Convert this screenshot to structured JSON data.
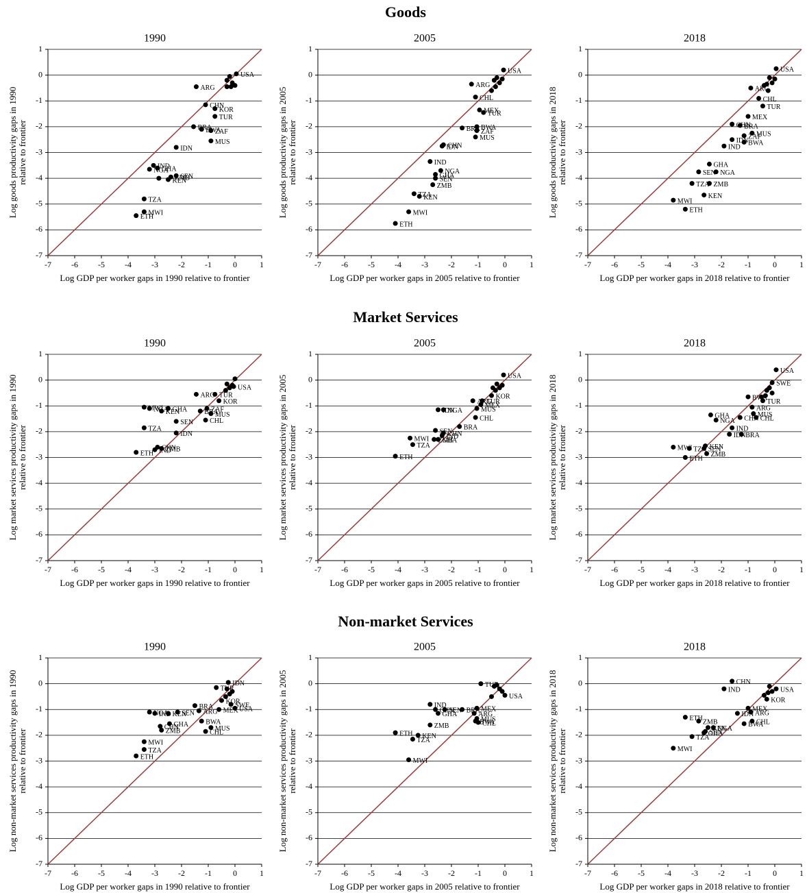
{
  "sections": [
    "Goods",
    "Market Services",
    "Non-market Services"
  ],
  "chart_data": [
    {
      "type": "scatter",
      "title": "1990",
      "xlabel": "Log GDP per worker gaps in 1990 relative to frontier",
      "ylabel": [
        "Log goods productivity gaps in 1990",
        "relative to frontier"
      ],
      "x": [
        0.05,
        -1.45,
        -1.1,
        -0.75,
        -0.75,
        -1.55,
        -1.25,
        -0.9,
        -0.9,
        -2.2,
        -3.05,
        -3.2,
        -2.9,
        -2.2,
        -2.4,
        -2.5,
        -2.85,
        -3.4,
        -3.4,
        -3.7,
        -0.3,
        -0.2,
        -0.1,
        -0.3,
        0.0,
        -0.15
      ],
      "y": [
        0.05,
        -0.45,
        -1.15,
        -1.3,
        -1.6,
        -2.0,
        -2.1,
        -2.15,
        -2.55,
        -2.8,
        -3.5,
        -3.65,
        -3.6,
        -3.9,
        -3.95,
        -4.05,
        -4.0,
        -4.8,
        -5.3,
        -5.45,
        -0.2,
        -0.05,
        -0.3,
        -0.45,
        -0.4,
        -0.45
      ],
      "labels": [
        "USA",
        "ARG",
        "CHN",
        "KOR",
        "TUR",
        "BRA",
        "BWA",
        "ZAF",
        "MUS",
        "IDN",
        "IND",
        "NGA",
        "GHA",
        "SEN",
        "ZMB",
        "KEN",
        null,
        "TZA",
        "MWI",
        "ETH",
        null,
        null,
        null,
        null,
        null,
        null
      ],
      "xlim": [
        -7,
        1
      ],
      "ylim": [
        -7,
        1
      ],
      "xticks": [
        -7,
        -6,
        -5,
        -4,
        -3,
        -2,
        -1,
        0,
        1
      ],
      "yticks": [
        -7,
        -6,
        -5,
        -4,
        -3,
        -2,
        -1,
        0,
        1
      ],
      "grid": true,
      "color": "#000000",
      "diagonal_color": "#9b3b3b"
    },
    {
      "type": "scatter",
      "title": "2005",
      "xlabel": "Log GDP per worker gaps in 2005 relative to frontier",
      "ylabel": [
        "Log goods productivity gaps in 2005",
        "relative to frontier"
      ],
      "x": [
        -0.05,
        -1.25,
        -1.1,
        -0.95,
        -0.8,
        -1.6,
        -1.05,
        -1.05,
        -1.1,
        -2.3,
        -2.35,
        -2.8,
        -2.4,
        -2.6,
        -2.6,
        -2.7,
        -3.4,
        -3.2,
        -3.6,
        -4.1,
        -0.4,
        -0.3,
        -0.2,
        -0.1,
        -0.5,
        -0.35
      ],
      "y": [
        0.2,
        -0.35,
        -0.85,
        -1.35,
        -1.45,
        -2.05,
        -2.0,
        -2.15,
        -2.4,
        -2.7,
        -2.75,
        -3.35,
        -3.7,
        -3.85,
        -4.0,
        -4.25,
        -4.6,
        -4.7,
        -5.3,
        -5.75,
        -0.2,
        -0.1,
        -0.3,
        -0.15,
        -0.6,
        -0.45
      ],
      "labels": [
        "USA",
        "ARG",
        "CHL",
        "MEX",
        "TUR",
        "BRA",
        "BWA",
        "ZAF",
        "MUS",
        "CHN",
        "IDN",
        "IND",
        "NGA",
        "GHA",
        "SEN",
        "ZMB",
        "TZA",
        "KEN",
        "MWI",
        "ETH",
        null,
        null,
        null,
        null,
        null,
        null
      ],
      "xlim": [
        -7,
        1
      ],
      "ylim": [
        -7,
        1
      ],
      "xticks": [
        -7,
        -6,
        -5,
        -4,
        -3,
        -2,
        -1,
        0,
        1
      ],
      "yticks": [
        -7,
        -6,
        -5,
        -4,
        -3,
        -2,
        -1,
        0,
        1
      ],
      "grid": true,
      "color": "#000000",
      "diagonal_color": "#9b3b3b"
    },
    {
      "type": "scatter",
      "title": "2018",
      "xlabel": "Log GDP per worker gaps in 2018 relative to frontier",
      "ylabel": [
        "Log goods productivity gaps in 2018",
        "relative to frontier"
      ],
      "x": [
        0.05,
        -0.9,
        -0.6,
        -0.45,
        -1.0,
        -1.6,
        -1.3,
        -0.85,
        -1.6,
        -1.15,
        -1.15,
        -1.9,
        -2.45,
        -2.85,
        -2.2,
        -3.1,
        -2.45,
        -2.65,
        -3.8,
        -3.35,
        -0.3,
        -0.2,
        -0.1,
        -0.25,
        -0.4,
        0.0
      ],
      "y": [
        0.25,
        -0.5,
        -0.9,
        -1.2,
        -1.6,
        -1.9,
        -1.95,
        -2.25,
        -2.5,
        -2.35,
        -2.6,
        -2.75,
        -3.45,
        -3.75,
        -3.75,
        -4.2,
        -4.2,
        -4.65,
        -4.85,
        -5.2,
        -0.35,
        -0.1,
        -0.3,
        -0.6,
        -0.4,
        -0.15
      ],
      "labels": [
        "USA",
        "ARG",
        "CHL",
        "TUR",
        "MEX",
        "CHN",
        "BRA",
        "MUS",
        "IDN",
        "ZAF",
        "BWA",
        "IND",
        "GHA",
        "SEN",
        "NGA",
        "TZA",
        "ZMB",
        "KEN",
        "MWI",
        "ETH",
        null,
        null,
        null,
        null,
        null,
        null
      ],
      "xlim": [
        -7,
        1
      ],
      "ylim": [
        -7,
        1
      ],
      "xticks": [
        -7,
        -6,
        -5,
        -4,
        -3,
        -2,
        -1,
        0,
        1
      ],
      "yticks": [
        -7,
        -6,
        -5,
        -4,
        -3,
        -2,
        -1,
        0,
        1
      ],
      "grid": true,
      "color": "#000000",
      "diagonal_color": "#9b3b3b"
    },
    {
      "type": "scatter",
      "title": "1990",
      "xlabel": "Log GDP per worker gaps in 1990 relative to frontier",
      "ylabel": [
        "Log market services productivity gaps in 1990",
        "relative to frontier"
      ],
      "x": [
        0.0,
        -1.45,
        -0.6,
        -0.75,
        -1.3,
        -1.05,
        -0.9,
        -1.1,
        -2.5,
        -3.2,
        -3.4,
        -2.75,
        -2.2,
        -3.4,
        -2.2,
        -2.9,
        -2.75,
        -3.0,
        -3.7,
        -0.3,
        -0.2,
        -0.1,
        -0.35,
        -0.05
      ],
      "y": [
        0.05,
        -0.55,
        -0.8,
        -0.55,
        -1.2,
        -1.1,
        -1.3,
        -1.55,
        -1.1,
        -1.1,
        -1.05,
        -1.2,
        -1.6,
        -1.85,
        -2.05,
        -2.6,
        -2.65,
        -2.7,
        -2.8,
        -0.15,
        -0.3,
        -0.2,
        -0.4,
        -0.25
      ],
      "labels": [
        null,
        "ARG",
        "KOR",
        "TUR",
        "BRA",
        "ZAF",
        "MUS",
        "CHL",
        "GHA",
        "NGA",
        "MWI",
        "KEN",
        "SEN",
        "TZA",
        "IDN",
        "CHN",
        "ZMB",
        "IND",
        "ETH",
        null,
        null,
        null,
        null,
        "USA"
      ],
      "xlim": [
        -7,
        1
      ],
      "ylim": [
        -7,
        1
      ],
      "xticks": [
        -7,
        -6,
        -5,
        -4,
        -3,
        -2,
        -1,
        0,
        1
      ],
      "yticks": [
        -7,
        -6,
        -5,
        -4,
        -3,
        -2,
        -1,
        0,
        1
      ],
      "grid": true,
      "color": "#000000",
      "diagonal_color": "#9b3b3b"
    },
    {
      "type": "scatter",
      "title": "2005",
      "xlabel": "Log GDP per worker gaps in 2005 relative to frontier",
      "ylabel": [
        "Log market services productivity gaps in 2005",
        "relative to frontier"
      ],
      "x": [
        -0.05,
        -0.5,
        -1.2,
        -0.85,
        -0.9,
        -1.05,
        -1.1,
        -1.7,
        -2.3,
        -2.5,
        -2.6,
        -2.3,
        -2.35,
        -2.5,
        -2.65,
        -3.55,
        -3.45,
        -4.1,
        -0.3,
        -0.2,
        -0.1,
        -0.35,
        -0.45
      ],
      "y": [
        0.2,
        -0.6,
        -0.8,
        -0.8,
        -0.95,
        -1.1,
        -1.45,
        -1.8,
        -1.15,
        -1.15,
        -1.95,
        -2.05,
        -2.15,
        -2.3,
        -2.3,
        -2.25,
        -2.5,
        -2.95,
        -0.15,
        -0.3,
        -0.2,
        -0.4,
        -0.3
      ],
      "labels": [
        "USA",
        "KOR",
        "ARG",
        "TUR",
        "MEX",
        "MUS",
        "CHL",
        "BRA",
        "NGA",
        "IDN",
        "SEN",
        "CHN",
        "IND",
        "GHA",
        "ZMB",
        "MWI",
        "TZA",
        "ETH",
        null,
        null,
        null,
        null,
        null
      ],
      "xlim": [
        -7,
        1
      ],
      "ylim": [
        -7,
        1
      ],
      "xticks": [
        -7,
        -6,
        -5,
        -4,
        -3,
        -2,
        -1,
        0,
        1
      ],
      "yticks": [
        -7,
        -6,
        -5,
        -4,
        -3,
        -2,
        -1,
        0,
        1
      ],
      "grid": true,
      "color": "#000000",
      "diagonal_color": "#9b3b3b"
    },
    {
      "type": "scatter",
      "title": "2018",
      "xlabel": "Log GDP per worker gaps in 2018 relative to frontier",
      "ylabel": [
        "Log market services productivity gaps in 2018",
        "relative to frontier"
      ],
      "x": [
        0.05,
        -0.1,
        -1.0,
        -0.85,
        -1.3,
        -0.8,
        -0.7,
        -0.45,
        -2.4,
        -2.2,
        -1.6,
        -1.7,
        -1.25,
        -3.8,
        -3.2,
        -2.6,
        -2.65,
        -2.55,
        -3.35,
        -0.3,
        -0.2,
        -0.1,
        -0.35,
        -0.5
      ],
      "y": [
        0.4,
        -0.1,
        -0.65,
        -1.05,
        -1.45,
        -1.3,
        -1.45,
        -0.8,
        -1.35,
        -1.55,
        -1.85,
        -2.1,
        -2.1,
        -2.6,
        -2.65,
        -2.55,
        -2.65,
        -2.85,
        -3.0,
        -0.4,
        -0.3,
        -0.5,
        -0.6,
        -0.65
      ],
      "labels": [
        "USA",
        "SWE",
        "BWA",
        "ARG",
        "CHN",
        "MUS",
        "CHL",
        "TUR",
        "GHA",
        "NGA",
        "IND",
        "IDN",
        "BRA",
        "MWI",
        "TZA",
        "KEN",
        "SEN",
        "ZMB",
        "ETH",
        null,
        null,
        null,
        null,
        null
      ],
      "xlim": [
        -7,
        1
      ],
      "ylim": [
        -7,
        1
      ],
      "xticks": [
        -7,
        -6,
        -5,
        -4,
        -3,
        -2,
        -1,
        0,
        1
      ],
      "yticks": [
        -7,
        -6,
        -5,
        -4,
        -3,
        -2,
        -1,
        0,
        1
      ],
      "grid": true,
      "color": "#000000",
      "diagonal_color": "#9b3b3b"
    },
    {
      "type": "scatter",
      "title": "1990",
      "xlabel": "Log GDP per worker gaps in 1990 relative to frontier",
      "ylabel": [
        "Log non-market services productivity gaps in 1990",
        "relative to frontier"
      ],
      "x": [
        -0.25,
        -0.7,
        -0.5,
        -0.15,
        -0.6,
        0.0,
        -1.5,
        -1.35,
        -1.25,
        -0.9,
        -1.1,
        -2.15,
        -3.2,
        -3.0,
        -2.5,
        -2.45,
        -2.8,
        -2.75,
        -3.4,
        -3.4,
        -3.7,
        -0.3,
        -0.2,
        -0.1,
        -0.35
      ],
      "y": [
        0.05,
        -0.15,
        -0.65,
        -0.8,
        -1.0,
        -0.95,
        -0.85,
        -1.05,
        -1.45,
        -1.7,
        -1.85,
        -1.1,
        -1.1,
        -1.15,
        -1.15,
        -1.55,
        -1.65,
        -1.8,
        -2.25,
        -2.55,
        -2.8,
        -0.2,
        -0.4,
        -0.3,
        -0.5
      ],
      "labels": [
        "IDN",
        "TUR",
        "KOR",
        "SWE",
        "MEX",
        "USA",
        "BRA",
        "ARG",
        "BWA",
        "MUS",
        "CHL",
        "SEN",
        "NGA",
        "IND",
        "KEN",
        "GHA",
        "CHN",
        "ZMB",
        "MWI",
        "TZA",
        "ETH",
        null,
        null,
        null,
        null
      ],
      "xlim": [
        -7,
        1
      ],
      "ylim": [
        -7,
        1
      ],
      "xticks": [
        -7,
        -6,
        -5,
        -4,
        -3,
        -2,
        -1,
        0,
        1
      ],
      "yticks": [
        -7,
        -6,
        -5,
        -4,
        -3,
        -2,
        -1,
        0,
        1
      ],
      "grid": true,
      "color": "#000000",
      "diagonal_color": "#9b3b3b"
    },
    {
      "type": "scatter",
      "title": "2005",
      "xlabel": "Log GDP per worker gaps in 2005 relative to frontier",
      "ylabel": [
        "Log non-market services productivity gaps in 2005",
        "relative to frontier"
      ],
      "x": [
        -0.9,
        -2.8,
        -2.6,
        -2.25,
        -2.5,
        -1.6,
        -1.05,
        -1.15,
        -1.05,
        -1.1,
        -1.0,
        -2.8,
        -4.1,
        -3.25,
        -3.45,
        -3.6,
        0.0,
        -0.3,
        -0.2,
        -0.1,
        -0.4,
        -0.5
      ],
      "y": [
        0.0,
        -0.8,
        -1.0,
        -1.0,
        -1.15,
        -1.0,
        -0.95,
        -1.15,
        -1.35,
        -1.45,
        -1.5,
        -1.6,
        -1.9,
        -2.0,
        -2.15,
        -2.95,
        -0.45,
        -0.05,
        -0.2,
        -0.3,
        -0.1,
        -0.5
      ],
      "labels": [
        "TUR",
        "IND",
        "CHN",
        "SEN",
        "GHA",
        "BRA",
        "MEX",
        "ARG",
        "MUS",
        "BWA",
        "CHL",
        "ZMB",
        "ETH",
        "KEN",
        "TZA",
        "MWI",
        "USA",
        null,
        null,
        null,
        null,
        null
      ],
      "xlim": [
        -7,
        1
      ],
      "ylim": [
        -7,
        1
      ],
      "xticks": [
        -7,
        -6,
        -5,
        -4,
        -3,
        -2,
        -1,
        0,
        1
      ],
      "yticks": [
        -7,
        -6,
        -5,
        -4,
        -3,
        -2,
        -1,
        0,
        1
      ],
      "grid": true,
      "color": "#000000",
      "diagonal_color": "#9b3b3b"
    },
    {
      "type": "scatter",
      "title": "2018",
      "xlabel": "Log GDP per worker gaps in 2018 relative to frontier",
      "ylabel": [
        "Log non-market services productivity gaps in 2018",
        "relative to frontier"
      ],
      "x": [
        -1.6,
        -1.9,
        -0.3,
        0.05,
        -1.0,
        -0.9,
        -3.35,
        -1.4,
        -2.85,
        -0.85,
        -1.15,
        -2.5,
        -2.3,
        -2.6,
        -2.65,
        -3.1,
        -3.8,
        -0.2,
        -0.1,
        -0.4,
        -0.25
      ],
      "y": [
        0.1,
        -0.2,
        -0.6,
        -0.2,
        -0.95,
        -1.1,
        -1.3,
        -1.15,
        -1.45,
        -1.45,
        -1.55,
        -1.7,
        -1.7,
        -1.85,
        -1.9,
        -2.05,
        -2.5,
        -0.1,
        -0.3,
        -0.45,
        -0.35
      ],
      "labels": [
        "CHN",
        "IND",
        "KOR",
        "USA",
        "MEX",
        "ARG",
        "ETH",
        "IDN",
        "ZMB",
        "CHL",
        "BWA",
        "KEN",
        "NGA",
        "SEN",
        "GHA",
        "TZA",
        "MWI",
        null,
        null,
        null,
        null
      ],
      "xlim": [
        -7,
        1
      ],
      "ylim": [
        -7,
        1
      ],
      "xticks": [
        -7,
        -6,
        -5,
        -4,
        -3,
        -2,
        -1,
        0,
        1
      ],
      "yticks": [
        -7,
        -6,
        -5,
        -4,
        -3,
        -2,
        -1,
        0,
        1
      ],
      "grid": true,
      "color": "#000000",
      "diagonal_color": "#9b3b3b"
    }
  ]
}
